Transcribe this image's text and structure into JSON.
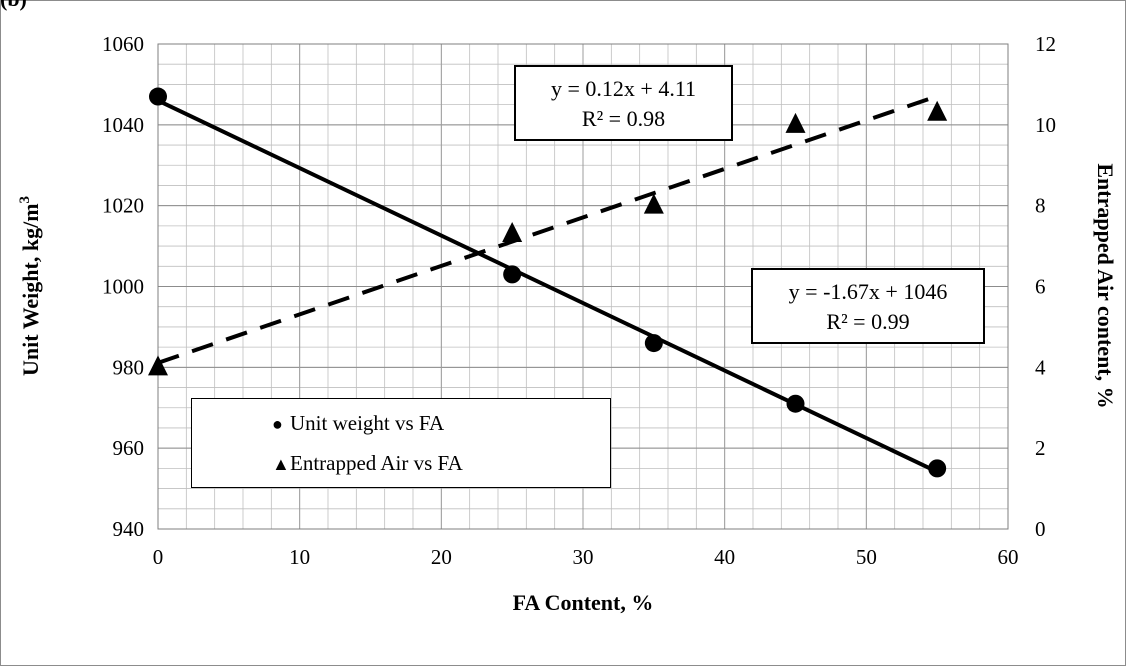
{
  "crop_text": "(b)",
  "chart_data": {
    "type": "scatter",
    "xlabel": "FA Content, %",
    "ylabel_left": "Unit Weight, kg/m",
    "ylabel_left_sup": "3",
    "ylabel_right": "Entrapped Air content, %",
    "xlim": [
      0,
      60
    ],
    "ylim_left": [
      940,
      1060
    ],
    "ylim_right": [
      0,
      12
    ],
    "x_ticks": [
      "0",
      "10",
      "20",
      "30",
      "40",
      "50",
      "60"
    ],
    "y_left_ticks": [
      "940",
      "960",
      "980",
      "1000",
      "1020",
      "1040",
      "1060"
    ],
    "y_right_ticks": [
      "0",
      "2",
      "4",
      "6",
      "8",
      "10",
      "12"
    ],
    "grid": true,
    "series": [
      {
        "name": "Unit weight vs FA",
        "marker": "circle",
        "axis": "left",
        "x": [
          0,
          25,
          35,
          45,
          55
        ],
        "y": [
          1047,
          1003,
          986,
          971,
          955
        ],
        "trendline": {
          "style": "solid",
          "slope": -1.67,
          "intercept": 1046
        },
        "equation": "y = -1.67x + 1046",
        "r2": "R² = 0.99"
      },
      {
        "name": "Entrapped Air vs FA",
        "marker": "triangle",
        "axis": "right",
        "x": [
          0,
          25,
          35,
          45,
          55
        ],
        "y": [
          4.0,
          7.3,
          8.0,
          10.0,
          10.3
        ],
        "trendline": {
          "style": "dashed",
          "slope": 0.12,
          "intercept": 4.11
        },
        "equation": "y = 0.12x + 4.11",
        "r2": "R² = 0.98"
      }
    ],
    "legend_position": "bottom-left",
    "colors": {
      "line": "#000000",
      "grid": "#bfbfbf",
      "frame": "#8c8c8c"
    }
  }
}
